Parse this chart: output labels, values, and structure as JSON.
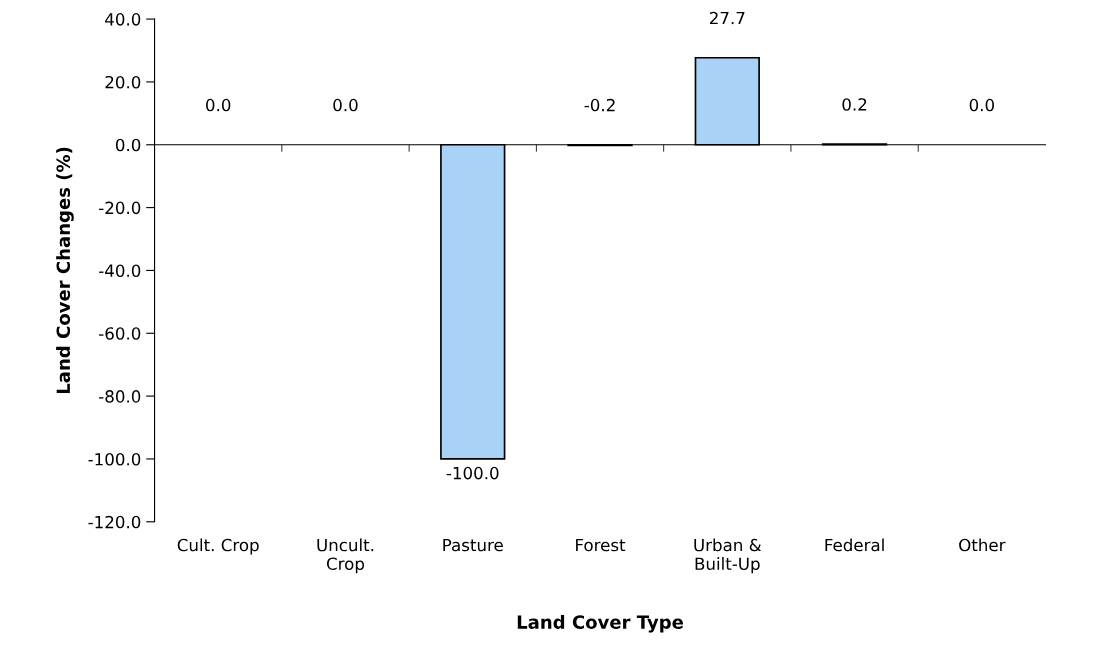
{
  "chart_data": {
    "type": "bar",
    "xlabel": "Land Cover Type",
    "ylabel": "Land Cover Changes (%)",
    "categories": [
      "Cult. Crop",
      "Uncult.\nCrop",
      "Pasture",
      "Forest",
      "Urban &\nBuilt-Up",
      "Federal",
      "Other"
    ],
    "values": [
      0.0,
      0.0,
      -100.0,
      -0.2,
      27.7,
      0.2,
      0.0
    ],
    "value_labels": [
      "0.0",
      "0.0",
      "-100.0",
      "-0.2",
      "27.7",
      "0.2",
      "0.0"
    ],
    "color": "#a9d2f7",
    "ylim": [
      -120,
      40
    ],
    "yticks": [
      {
        "value": -120,
        "label": "-120.0"
      },
      {
        "value": -100,
        "label": "-100.0"
      },
      {
        "value": -80,
        "label": "-80.0"
      },
      {
        "value": -60,
        "label": "-60.0"
      },
      {
        "value": -40,
        "label": "-40.0"
      },
      {
        "value": -20,
        "label": "-20.0"
      },
      {
        "value": 0,
        "label": "0.0"
      },
      {
        "value": 20,
        "label": "20.0"
      },
      {
        "value": 40,
        "label": "40.0"
      }
    ],
    "legend": false
  }
}
